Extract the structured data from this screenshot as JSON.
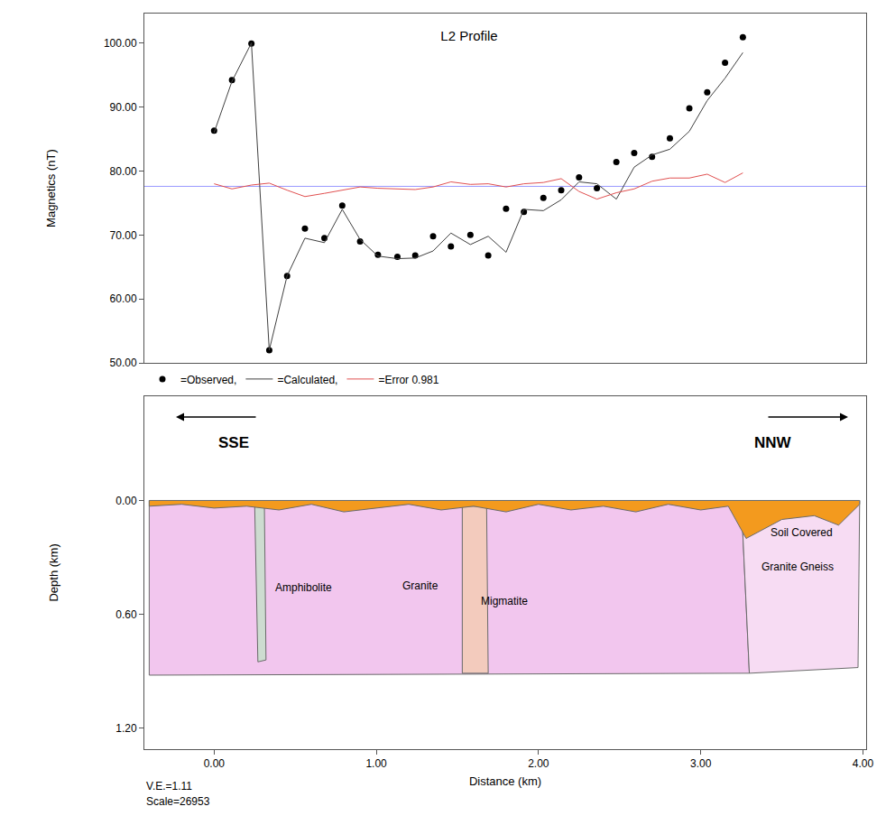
{
  "chart_data": [
    {
      "type": "line",
      "title": "L2 Profile",
      "y_label": "Magnetics (nT)",
      "xlim": [
        -0.43,
        4.02
      ],
      "ylim": [
        50,
        104.6
      ],
      "yticks": [
        {
          "value": 50,
          "label": "50.00"
        },
        {
          "value": 60,
          "label": "60.00"
        },
        {
          "value": 70,
          "label": "70.00"
        },
        {
          "value": 80,
          "label": "80.00"
        },
        {
          "value": 90,
          "label": "90.00"
        },
        {
          "value": 100,
          "label": "100.00"
        }
      ],
      "grid": false,
      "legend": "bottom left",
      "x": [
        0,
        0.11,
        0.23,
        0.34,
        0.45,
        0.56,
        0.68,
        0.79,
        0.9,
        1.01,
        1.13,
        1.24,
        1.35,
        1.46,
        1.58,
        1.69,
        1.8,
        1.91,
        2.03,
        2.14,
        2.25,
        2.36,
        2.48,
        2.59,
        2.7,
        2.81,
        2.93,
        3.04,
        3.15,
        3.26
      ],
      "series": [
        {
          "name": "=Observed,",
          "color": "#000000",
          "marker": "circle",
          "line_style": "none",
          "values": [
            86.3,
            94.2,
            99.9,
            52.0,
            63.6,
            71.0,
            69.5,
            74.6,
            69.0,
            66.9,
            66.6,
            66.8,
            69.8,
            68.2,
            70.0,
            66.8,
            74.1,
            73.6,
            75.8,
            77.0,
            79.0,
            77.3,
            81.4,
            82.8,
            82.2,
            85.1,
            89.8,
            92.3,
            96.9,
            100.9
          ]
        },
        {
          "name": "=Calculated,",
          "color": "#404040",
          "marker": "none",
          "line_style": "solid",
          "values": [
            86.0,
            94.0,
            100.0,
            52.0,
            63.6,
            69.5,
            68.8,
            74.0,
            69.3,
            66.7,
            66.3,
            66.4,
            67.5,
            70.3,
            68.5,
            69.8,
            67.3,
            74.0,
            73.8,
            75.5,
            78.3,
            78.0,
            75.6,
            80.6,
            82.5,
            83.4,
            86.2,
            91.0,
            94.5,
            98.5
          ]
        },
        {
          "name": "=Error 0.981",
          "color": "#e05050",
          "marker": "none",
          "line_style": "solid",
          "values": [
            78.0,
            77.2,
            77.8,
            78.1,
            77.0,
            76.0,
            76.5,
            77.0,
            77.5,
            77.3,
            77.2,
            77.1,
            77.5,
            78.3,
            77.9,
            78.0,
            77.5,
            78.0,
            78.2,
            78.8,
            76.8,
            75.6,
            76.6,
            77.2,
            78.4,
            78.9,
            78.9,
            79.5,
            78.2,
            79.7
          ]
        }
      ],
      "reference_line": {
        "value": 77.6,
        "color": "#9a9aff"
      }
    },
    {
      "type": "section",
      "x_label": "Distance (km)",
      "y_label": "Depth (km)",
      "xlim": [
        -0.43,
        4.02
      ],
      "xticks": [
        {
          "value": 0,
          "label": "0.00"
        },
        {
          "value": 1,
          "label": "1.00"
        },
        {
          "value": 2,
          "label": "2.00"
        },
        {
          "value": 3,
          "label": "3.00"
        },
        {
          "value": 4,
          "label": "4.00"
        }
      ],
      "ylim": [
        1.31,
        -0.55
      ],
      "yticks": [
        {
          "value": 0,
          "label": "0.00"
        },
        {
          "value": 0.6,
          "label": "0.60"
        },
        {
          "value": 1.2,
          "label": "1.20"
        }
      ],
      "grid": false,
      "directions": [
        "SSE",
        "NNW"
      ],
      "notes": [
        "V.E.=1.11",
        "Scale=26953"
      ],
      "bodies": [
        {
          "label": "Granite",
          "color": "#f2c6ee",
          "label_x": 1.27,
          "label_depth": 0.45,
          "x": [
            -0.4,
            3.25,
            3.3,
            -0.4
          ],
          "depth": [
            0.0,
            0.0,
            0.91,
            0.92
          ]
        },
        {
          "label": "Granite Gneiss",
          "color": "#f7dcf3",
          "label_x": 3.6,
          "label_depth": 0.35,
          "x": [
            3.25,
            3.98,
            3.97,
            3.3
          ],
          "depth": [
            0.0,
            0.0,
            0.88,
            0.91
          ]
        },
        {
          "label": "Amphibolite",
          "color": "#cddcd0",
          "label_x": 0.55,
          "label_depth": 0.46,
          "x": [
            0.25,
            0.31,
            0.32,
            0.27
          ],
          "depth": [
            0.02,
            0.02,
            0.84,
            0.85
          ]
        },
        {
          "label": "Migmatite",
          "color": "#f3cbbd",
          "label_x": 1.79,
          "label_depth": 0.53,
          "x": [
            1.53,
            1.68,
            1.69,
            1.53
          ],
          "depth": [
            0.03,
            0.03,
            0.91,
            0.91
          ]
        },
        {
          "label": "Soil Covered",
          "color": "#f39a1e",
          "label_x": 3.62,
          "label_depth": 0.17,
          "x": [
            -0.4,
            3.98,
            3.98,
            3.85,
            3.7,
            3.5,
            3.28,
            3.17,
            3.0,
            2.8,
            2.6,
            2.4,
            2.2,
            2.0,
            1.8,
            1.6,
            1.4,
            1.2,
            1.0,
            0.8,
            0.6,
            0.4,
            0.2,
            0.0,
            -0.2,
            -0.4
          ],
          "depth": [
            0.0,
            0.0,
            0.02,
            0.13,
            0.08,
            0.1,
            0.2,
            0.03,
            0.05,
            0.02,
            0.06,
            0.03,
            0.05,
            0.02,
            0.06,
            0.03,
            0.05,
            0.02,
            0.04,
            0.06,
            0.02,
            0.05,
            0.03,
            0.04,
            0.02,
            0.03
          ]
        }
      ]
    }
  ]
}
